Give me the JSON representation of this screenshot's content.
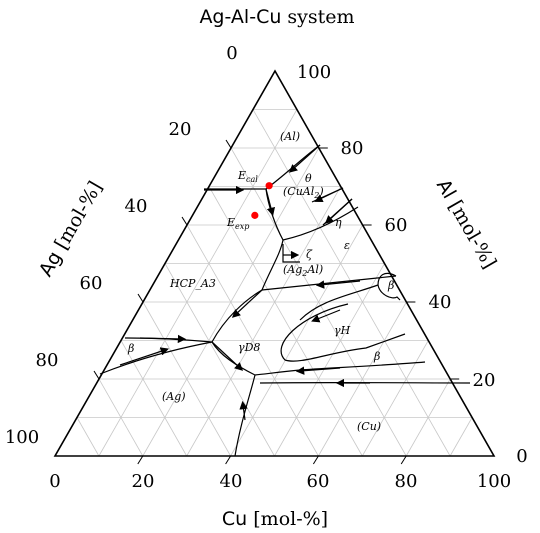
{
  "title": {
    "main": "Ag-Al-Cu",
    "suffix": " system"
  },
  "axes": {
    "bottom": {
      "name": "Cu",
      "unit": " [mol-%]",
      "ticks": [
        "0",
        "20",
        "40",
        "60",
        "80",
        "100"
      ]
    },
    "left": {
      "name": "Ag",
      "unit": " [mol-%]",
      "ticks": [
        "0",
        "20",
        "40",
        "60",
        "80",
        "100"
      ]
    },
    "right": {
      "name": "Al",
      "unit": " [mol-%]",
      "ticks": [
        "100",
        "80",
        "60",
        "40",
        "20",
        "0"
      ]
    }
  },
  "phase_labels": {
    "al": "(Al)",
    "theta": "θ",
    "cual2": "(CuAl",
    "cual2_sub": "2",
    "cual2_close": ")",
    "eta": "η",
    "epsilon": "ε",
    "zeta": "ζ",
    "ag2al": "(Ag",
    "ag2al_sub": "2",
    "ag2al_close": "Al)",
    "hcp": "HCP_A3",
    "beta_left": "β",
    "beta_right_top": "β",
    "beta_right": "β",
    "gammaH": "γH",
    "gammaD8": "γD8",
    "ag": "(Ag)",
    "cu": "(Cu)",
    "ecal": "E",
    "ecal_sub": "cal",
    "eexp": "E",
    "eexp_sub": "exp"
  },
  "points": {
    "E_cal": {
      "Cu": 13.6,
      "Al": 70.2,
      "color": "#ff0000"
    },
    "E_exp": {
      "Cu": 14.2,
      "Al": 62.5,
      "color": "#ff0000"
    }
  },
  "grid": {
    "step_percent": 10,
    "color": "#c8c8c8"
  }
}
